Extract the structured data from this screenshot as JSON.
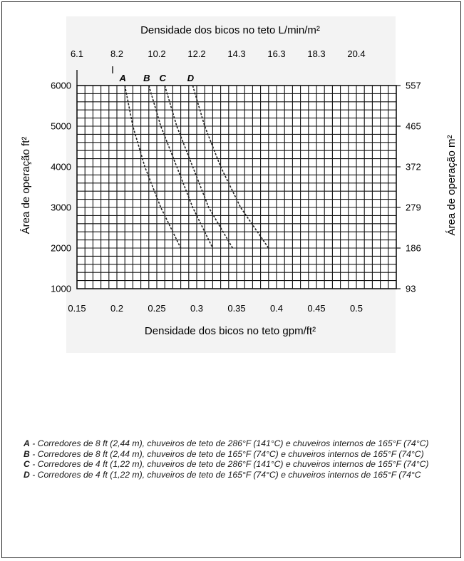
{
  "chart_data": {
    "type": "line",
    "title": "",
    "top_axis": {
      "label": "Densidade dos bicos no teto L/min/m²",
      "ticks": [
        "6.1",
        "8.2",
        "10.2",
        "12.2",
        "14.3",
        "16.3",
        "18.3",
        "20.4"
      ]
    },
    "bottom_axis": {
      "label": "Densidade dos bicos no teto gpm/ft²",
      "ticks": [
        "0.15",
        "0.2",
        "0.25",
        "0.3",
        "0.35",
        "0.4",
        "0.45",
        "0.5"
      ],
      "range": [
        0.15,
        0.55
      ]
    },
    "left_axis": {
      "label": "Área de operação ft²",
      "ticks": [
        "6000",
        "5000",
        "4000",
        "3000",
        "2000",
        "1000"
      ],
      "range": [
        1000,
        6000
      ]
    },
    "right_axis": {
      "label": "Área de operação m²",
      "ticks": [
        "557",
        "465",
        "372",
        "279",
        "186",
        "93"
      ]
    },
    "grid": true,
    "series": [
      {
        "name": "A",
        "points": [
          [
            0.21,
            6000
          ],
          [
            0.22,
            5000
          ],
          [
            0.235,
            4000
          ],
          [
            0.255,
            3000
          ],
          [
            0.28,
            2000
          ]
        ]
      },
      {
        "name": "B",
        "points": [
          [
            0.24,
            6000
          ],
          [
            0.255,
            5000
          ],
          [
            0.275,
            4000
          ],
          [
            0.295,
            3000
          ],
          [
            0.32,
            2000
          ]
        ]
      },
      {
        "name": "C",
        "points": [
          [
            0.26,
            6000
          ],
          [
            0.275,
            5000
          ],
          [
            0.295,
            4000
          ],
          [
            0.315,
            3000
          ],
          [
            0.345,
            2000
          ]
        ]
      },
      {
        "name": "D",
        "points": [
          [
            0.295,
            6000
          ],
          [
            0.31,
            5000
          ],
          [
            0.33,
            4000
          ],
          [
            0.355,
            3000
          ],
          [
            0.39,
            2000
          ]
        ]
      }
    ]
  },
  "notes": [
    {
      "letter": "A",
      "text": " - Corredores de 8 ft (2,44 m), chuveiros de teto de 286°F (141°C) e chuveiros internos de 165°F (74°C)"
    },
    {
      "letter": "B",
      "text": " - Corredores de 8 ft (2,44 m), chuveiros de teto de 165°F (74°C) e chuveiros internos de 165°F (74°C)"
    },
    {
      "letter": "C",
      "text": " - Corredores de 4 ft (1,22 m), chuveiros de teto de 286°F (141°C) e chuveiros internos de 165°F (74°C)"
    },
    {
      "letter": "D",
      "text": " - Corredores de 4 ft (1,22 m), chuveiros de teto de 165°F (74°C) e chuveiros internos de 165°F (74°C"
    }
  ]
}
